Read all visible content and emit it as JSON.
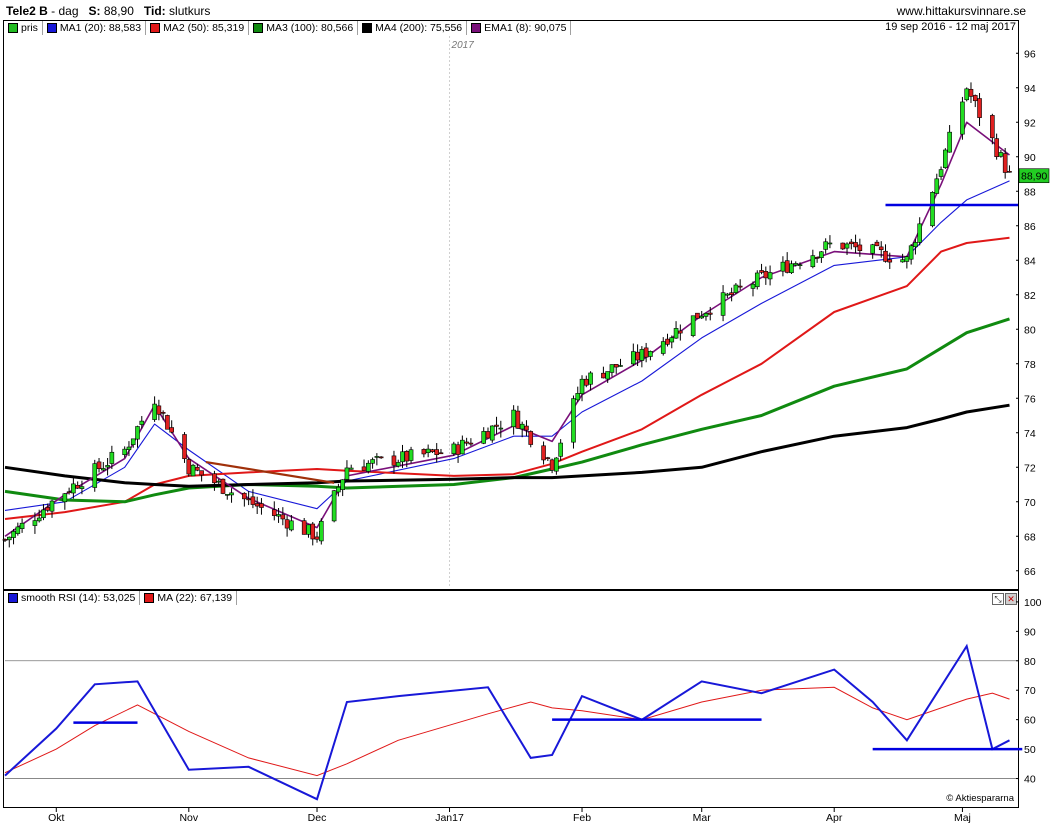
{
  "header": {
    "ticker": "Tele2 B",
    "sep1": " - ",
    "period": "dag",
    "s_label": "S:",
    "s_value": "88,90",
    "tid_label": "Tid:",
    "tid_value": "slutkurs",
    "site": "www.hittakursvinnare.se"
  },
  "legend": [
    {
      "label": "pris",
      "color": "#22bb22"
    },
    {
      "label": "MA1 (20): 88,583",
      "color": "#1818d8"
    },
    {
      "label": "MA2 (50): 85,319",
      "color": "#e01818"
    },
    {
      "label": "MA3 (100): 80,566",
      "color": "#108a10"
    },
    {
      "label": "MA4 (200): 75,556",
      "color": "#000000"
    },
    {
      "label": "EMA1 (8): 90,075",
      "color": "#7a107a"
    }
  ],
  "date_range": "19 sep 2016 - 12 maj 2017",
  "year_marker": "2017",
  "price_tag": "88,90",
  "rsi_legend": [
    {
      "label": "smooth RSI (14): 53,025",
      "color": "#1818d8"
    },
    {
      "label": "MA (22): 67,139",
      "color": "#e01818"
    }
  ],
  "copyright": "© Aktiespararna",
  "chart_data": [
    {
      "type": "line",
      "ylim": [
        65,
        97
      ],
      "yticks": [
        66,
        68,
        70,
        72,
        74,
        76,
        78,
        80,
        82,
        84,
        86,
        88,
        90,
        92,
        94,
        96
      ],
      "xticks": [
        "Okt",
        "Nov",
        "Dec",
        "Jan17",
        "Feb",
        "Mar",
        "Apr",
        "Maj"
      ],
      "x": [
        "2016-09-19",
        "2016-10-03",
        "2016-10-17",
        "2016-10-24",
        "2016-11-01",
        "2016-11-15",
        "2016-12-01",
        "2016-12-08",
        "2017-01-02",
        "2017-01-16",
        "2017-01-25",
        "2017-02-01",
        "2017-02-15",
        "2017-03-01",
        "2017-03-15",
        "2017-04-01",
        "2017-04-18",
        "2017-04-26",
        "2017-05-02",
        "2017-05-12"
      ],
      "series": [
        {
          "name": "pris",
          "values": [
            67.8,
            70.6,
            73.0,
            76.0,
            72.0,
            70.0,
            68.0,
            72.0,
            73.0,
            75.0,
            72.2,
            77.0,
            78.5,
            81.0,
            83.0,
            85.0,
            84.0,
            89.5,
            94.0,
            88.9
          ]
        },
        {
          "name": "MA1 (20)",
          "values": [
            69.5,
            70.0,
            72.0,
            74.5,
            73.0,
            70.6,
            69.6,
            71.2,
            72.5,
            73.8,
            73.8,
            75.2,
            77.0,
            79.5,
            81.5,
            83.7,
            84.2,
            86.2,
            87.5,
            88.6
          ]
        },
        {
          "name": "MA2 (50)",
          "values": [
            69.0,
            69.4,
            70.0,
            71.0,
            71.5,
            71.7,
            71.9,
            71.8,
            71.5,
            71.6,
            72.2,
            72.9,
            74.2,
            76.2,
            78.0,
            81.0,
            82.5,
            84.5,
            85.0,
            85.3
          ]
        },
        {
          "name": "MA3 (100)",
          "values": [
            70.6,
            70.1,
            70.0,
            70.4,
            70.8,
            71.0,
            70.9,
            70.8,
            71.0,
            71.4,
            71.9,
            72.3,
            73.3,
            74.2,
            75.0,
            76.7,
            77.7,
            78.9,
            79.8,
            80.6
          ]
        },
        {
          "name": "MA4 (200)",
          "values": [
            72.0,
            71.5,
            71.1,
            71.0,
            70.9,
            71.0,
            71.1,
            71.2,
            71.3,
            71.4,
            71.4,
            71.5,
            71.7,
            72.0,
            72.9,
            73.8,
            74.3,
            74.8,
            75.2,
            75.6
          ]
        },
        {
          "name": "EMA1 (8)",
          "values": [
            68.0,
            70.4,
            72.5,
            75.6,
            72.5,
            70.2,
            68.5,
            71.5,
            72.7,
            74.4,
            73.5,
            76.2,
            78.2,
            80.8,
            83.0,
            84.5,
            84.2,
            88.4,
            92.0,
            90.1
          ]
        }
      ]
    },
    {
      "type": "line",
      "ylim": [
        30,
        102
      ],
      "yticks": [
        40,
        50,
        60,
        70,
        80,
        90,
        100
      ],
      "x": [
        "2016-09-19",
        "2016-10-01",
        "2016-10-10",
        "2016-10-20",
        "2016-11-01",
        "2016-11-15",
        "2016-12-01",
        "2016-12-08",
        "2016-12-20",
        "2017-01-10",
        "2017-01-20",
        "2017-01-25",
        "2017-02-01",
        "2017-02-15",
        "2017-03-01",
        "2017-03-15",
        "2017-04-01",
        "2017-04-10",
        "2017-04-18",
        "2017-05-02",
        "2017-05-08",
        "2017-05-12"
      ],
      "series": [
        {
          "name": "smooth RSI (14)",
          "values": [
            41,
            57,
            72,
            73,
            43,
            44,
            33,
            66,
            68,
            71,
            47,
            48,
            68,
            60,
            73,
            69,
            77,
            66,
            53,
            85,
            50,
            53
          ]
        },
        {
          "name": "MA (22)",
          "values": [
            42,
            50,
            58,
            65,
            56,
            47,
            41,
            45,
            53,
            62,
            66,
            64,
            63,
            60,
            66,
            70,
            71,
            64,
            60,
            67,
            69,
            67
          ]
        }
      ]
    }
  ]
}
